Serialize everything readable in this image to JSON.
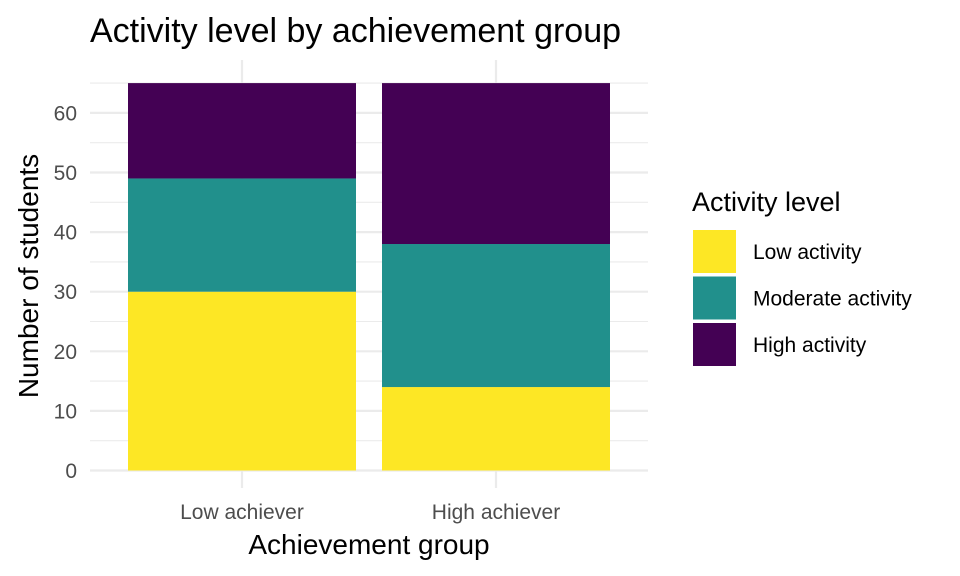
{
  "chart_data": {
    "type": "bar",
    "stacked": true,
    "title": "Activity level by achievement group",
    "xlabel": "Achievement group",
    "ylabel": "Number of students",
    "categories": [
      "Low achiever",
      "High achiever"
    ],
    "series": [
      {
        "name": "Low activity",
        "values": [
          30,
          14
        ],
        "color": "#fde725"
      },
      {
        "name": "Moderate activity",
        "values": [
          19,
          24
        ],
        "color": "#21908c"
      },
      {
        "name": "High activity",
        "values": [
          16,
          27
        ],
        "color": "#440154"
      }
    ],
    "ylim": [
      0,
      65
    ],
    "yticks": [
      0,
      10,
      20,
      30,
      40,
      50,
      60
    ],
    "grid": true,
    "legend": {
      "title": "Activity level",
      "placement": "right"
    }
  }
}
